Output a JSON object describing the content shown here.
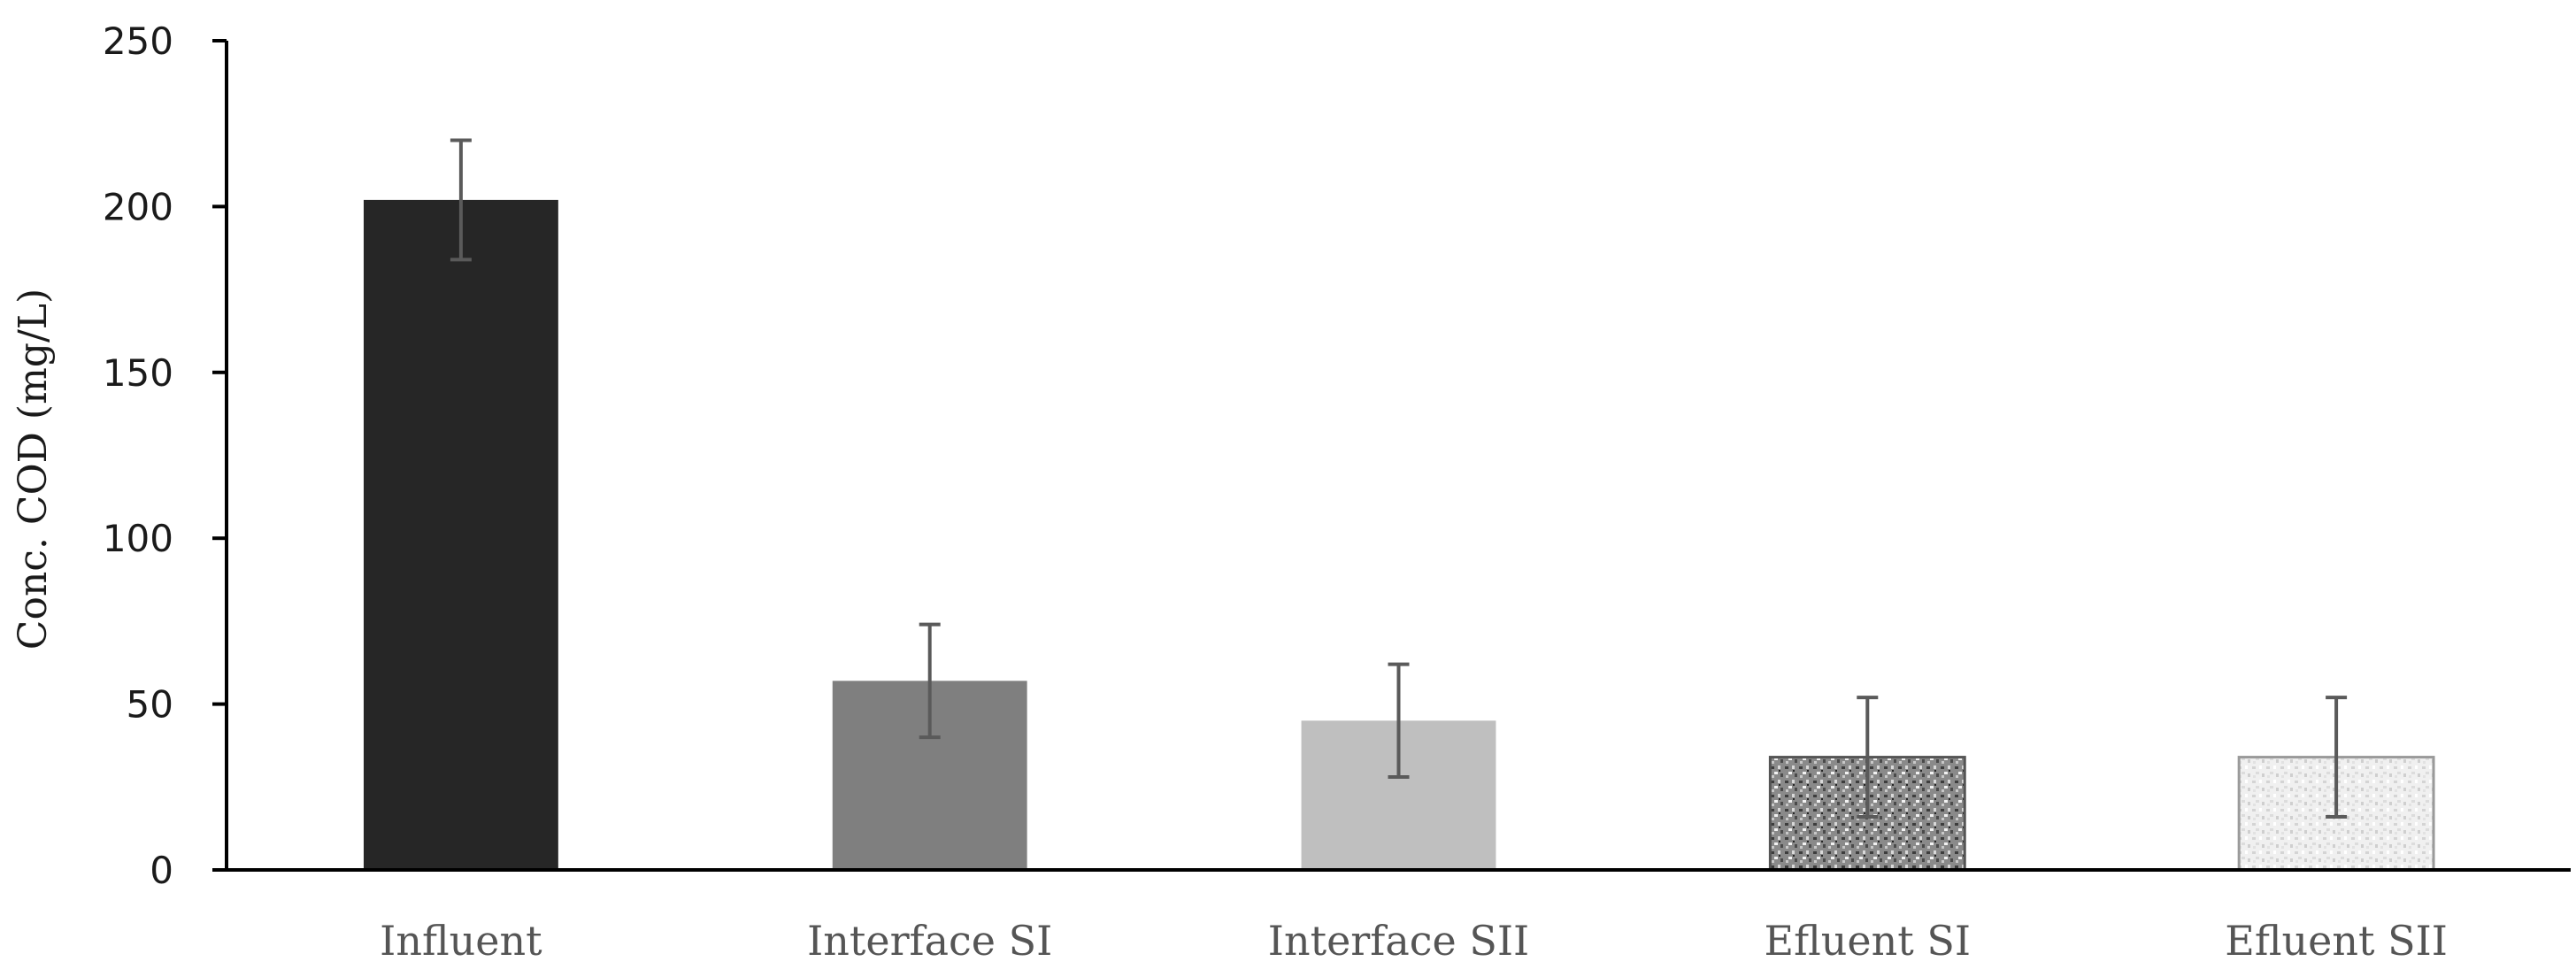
{
  "chart_data": {
    "type": "bar",
    "title": "",
    "xlabel": "",
    "ylabel": "Conc. COD (mg/L)",
    "ylim": [
      0,
      250
    ],
    "yticks": [
      0,
      50,
      100,
      150,
      200,
      250
    ],
    "ytick_labels": [
      "0",
      "50",
      "100",
      "150",
      "200",
      "250"
    ],
    "categories": [
      "Influent",
      "Interface SI",
      "Interface SII",
      "Efluent SI",
      "Efluent SII"
    ],
    "values": [
      202,
      57,
      45,
      34,
      34
    ],
    "errors": [
      18,
      17,
      17,
      18,
      18
    ],
    "bar_colors": [
      "#262626",
      "#7f7f7f",
      "#bfbfbf",
      "#8c8c8c",
      "#ececec"
    ],
    "bar_patterns": [
      "solid",
      "solid",
      "solid",
      "speckle-dark",
      "speckle-light"
    ],
    "grid": false,
    "legend": "none"
  }
}
